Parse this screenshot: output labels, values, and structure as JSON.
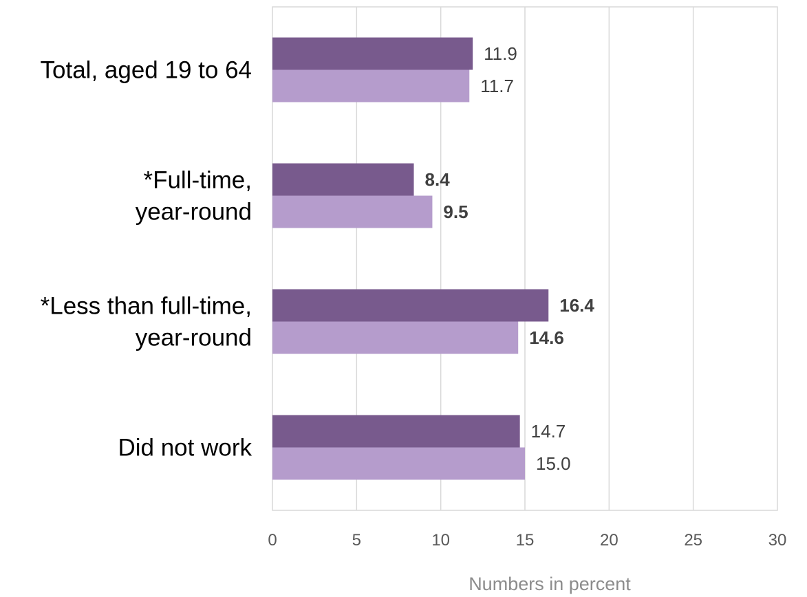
{
  "chart_data": {
    "type": "bar",
    "orientation": "horizontal",
    "categories": [
      [
        "Total, aged 19 to 64"
      ],
      [
        "*Full-time,",
        "year-round"
      ],
      [
        "*Less than full-time,",
        "year-round"
      ],
      [
        "Did not work"
      ]
    ],
    "series": [
      {
        "values": [
          11.9,
          8.4,
          16.4,
          14.7
        ],
        "color": "#785a8d"
      },
      {
        "values": [
          11.7,
          9.5,
          14.6,
          15.0
        ],
        "color": "#b59ccc"
      }
    ],
    "data_labels": [
      [
        "11.9",
        "8.4",
        "16.4",
        "14.7"
      ],
      [
        "11.7",
        "9.5",
        "14.6",
        "15.0"
      ]
    ],
    "bold_categories": [
      1,
      2
    ],
    "xlim": [
      0,
      30
    ],
    "xticks": [
      0,
      5,
      10,
      15,
      20,
      25,
      30
    ],
    "xlabel": "Numbers in percent",
    "grid": true,
    "legend": "none"
  }
}
